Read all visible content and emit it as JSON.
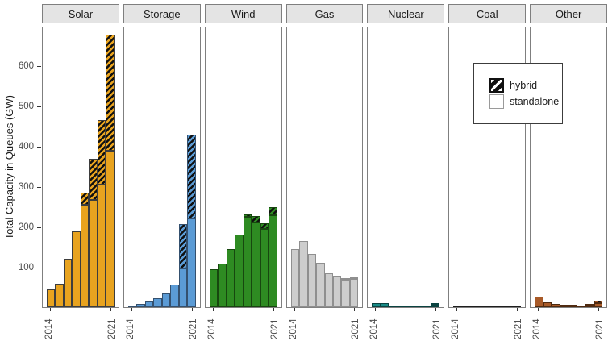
{
  "chart_data": {
    "type": "bar",
    "stacked": true,
    "faceted": true,
    "title": "",
    "ylabel": "Total Capacity in Queues (GW)",
    "x": [
      2014,
      2015,
      2016,
      2017,
      2018,
      2019,
      2020,
      2021
    ],
    "x_tick_labels_shown": [
      "2014",
      "2021"
    ],
    "y_ticks": [
      100,
      200,
      300,
      400,
      500,
      600
    ],
    "ylim": [
      0,
      698
    ],
    "grid": false,
    "legend": {
      "position": "inside-upper-right-over-coal-facet",
      "entries": [
        {
          "label": "hybrid",
          "swatch": "black-diagonal-hatch"
        },
        {
          "label": "standalone",
          "swatch": "plain"
        }
      ]
    },
    "facets": [
      {
        "label": "Solar",
        "fill": "#E8A31F",
        "stroke": "#3d3d3d",
        "series": [
          {
            "name": "standalone",
            "values": [
              43,
              57,
              119,
              188,
              253,
              265,
              303,
              388
            ]
          },
          {
            "name": "hybrid",
            "values": [
              0,
              0,
              0,
              0,
              30,
              101,
              160,
              288
            ]
          }
        ]
      },
      {
        "label": "Storage",
        "fill": "#5B9BD5",
        "stroke": "#34506e",
        "series": [
          {
            "name": "standalone",
            "values": [
              2,
              8,
              13,
              22,
              33,
              55,
              95,
              220
            ]
          },
          {
            "name": "hybrid",
            "values": [
              0,
              0,
              0,
              0,
              0,
              0,
              110,
              207
            ]
          }
        ]
      },
      {
        "label": "Wind",
        "fill": "#2E8B22",
        "stroke": "#17470f",
        "series": [
          {
            "name": "standalone",
            "values": [
              93,
              107,
              143,
              180,
              224,
              209,
              193,
              227
            ]
          },
          {
            "name": "hybrid",
            "values": [
              0,
              0,
              0,
              0,
              6,
              15,
              14,
              20
            ]
          }
        ]
      },
      {
        "label": "Gas",
        "fill": "#CDCDCD",
        "stroke": "#8f8f8f",
        "series": [
          {
            "name": "standalone",
            "values": [
              143,
              163,
              131,
              109,
              84,
              75,
              68,
              70
            ]
          },
          {
            "name": "hybrid",
            "values": [
              0,
              0,
              0,
              0,
              0,
              0,
              2,
              2
            ]
          }
        ]
      },
      {
        "label": "Nuclear",
        "fill": "#188A86",
        "stroke": "#0b4341",
        "series": [
          {
            "name": "standalone",
            "values": [
              10,
              9,
              3,
              2,
              1,
              3,
              3,
              6
            ]
          },
          {
            "name": "hybrid",
            "values": [
              0,
              0,
              0,
              0,
              0,
              0,
              0,
              1
            ]
          }
        ]
      },
      {
        "label": "Coal",
        "fill": "#4A4A4A",
        "stroke": "#1e1e1e",
        "series": [
          {
            "name": "standalone",
            "values": [
              4,
              4,
              1.5,
              1,
              0.5,
              0.5,
              0.5,
              1
            ]
          },
          {
            "name": "hybrid",
            "values": [
              0,
              0,
              0,
              0,
              0,
              0,
              0,
              0
            ]
          }
        ]
      },
      {
        "label": "Other",
        "fill": "#A85A28",
        "stroke": "#4f2a10",
        "series": [
          {
            "name": "standalone",
            "values": [
              26,
              12,
              8,
              5,
              5,
              4,
              4,
              9
            ]
          },
          {
            "name": "hybrid",
            "values": [
              0,
              0,
              0,
              0,
              0,
              0,
              1,
              6
            ]
          }
        ]
      }
    ]
  },
  "style": {
    "hatch_color": "#101010",
    "strip_bg": "#e4e4e4",
    "panel_border": "#7f7f7f"
  }
}
